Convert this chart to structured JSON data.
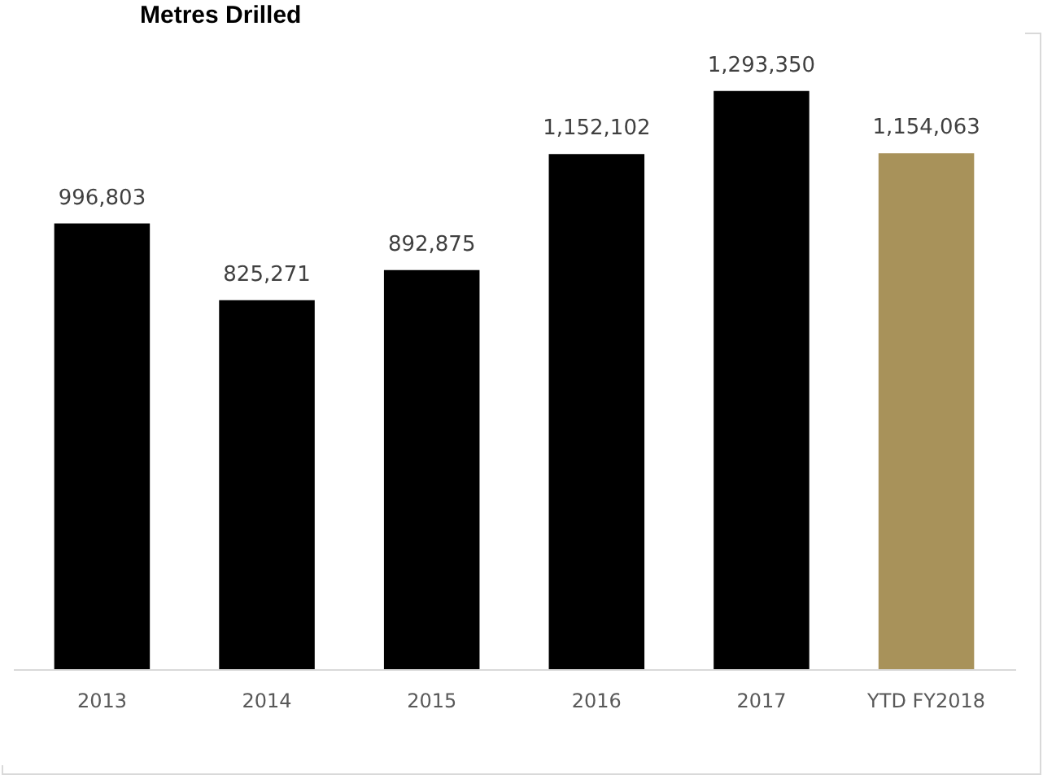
{
  "chart_data": {
    "type": "bar",
    "title": "Metres Drilled",
    "categories": [
      "2013",
      "2014",
      "2015",
      "2016",
      "2017",
      "YTD FY2018"
    ],
    "values": [
      996803,
      825271,
      892875,
      1152102,
      1293350,
      1154063
    ],
    "colors": [
      "#000000",
      "#000000",
      "#000000",
      "#000000",
      "#000000",
      "#a8925a"
    ],
    "value_labels": [
      "996,803",
      "825,271",
      "892,875",
      "1,152,102",
      "1,293,350",
      "1,154,063"
    ]
  }
}
